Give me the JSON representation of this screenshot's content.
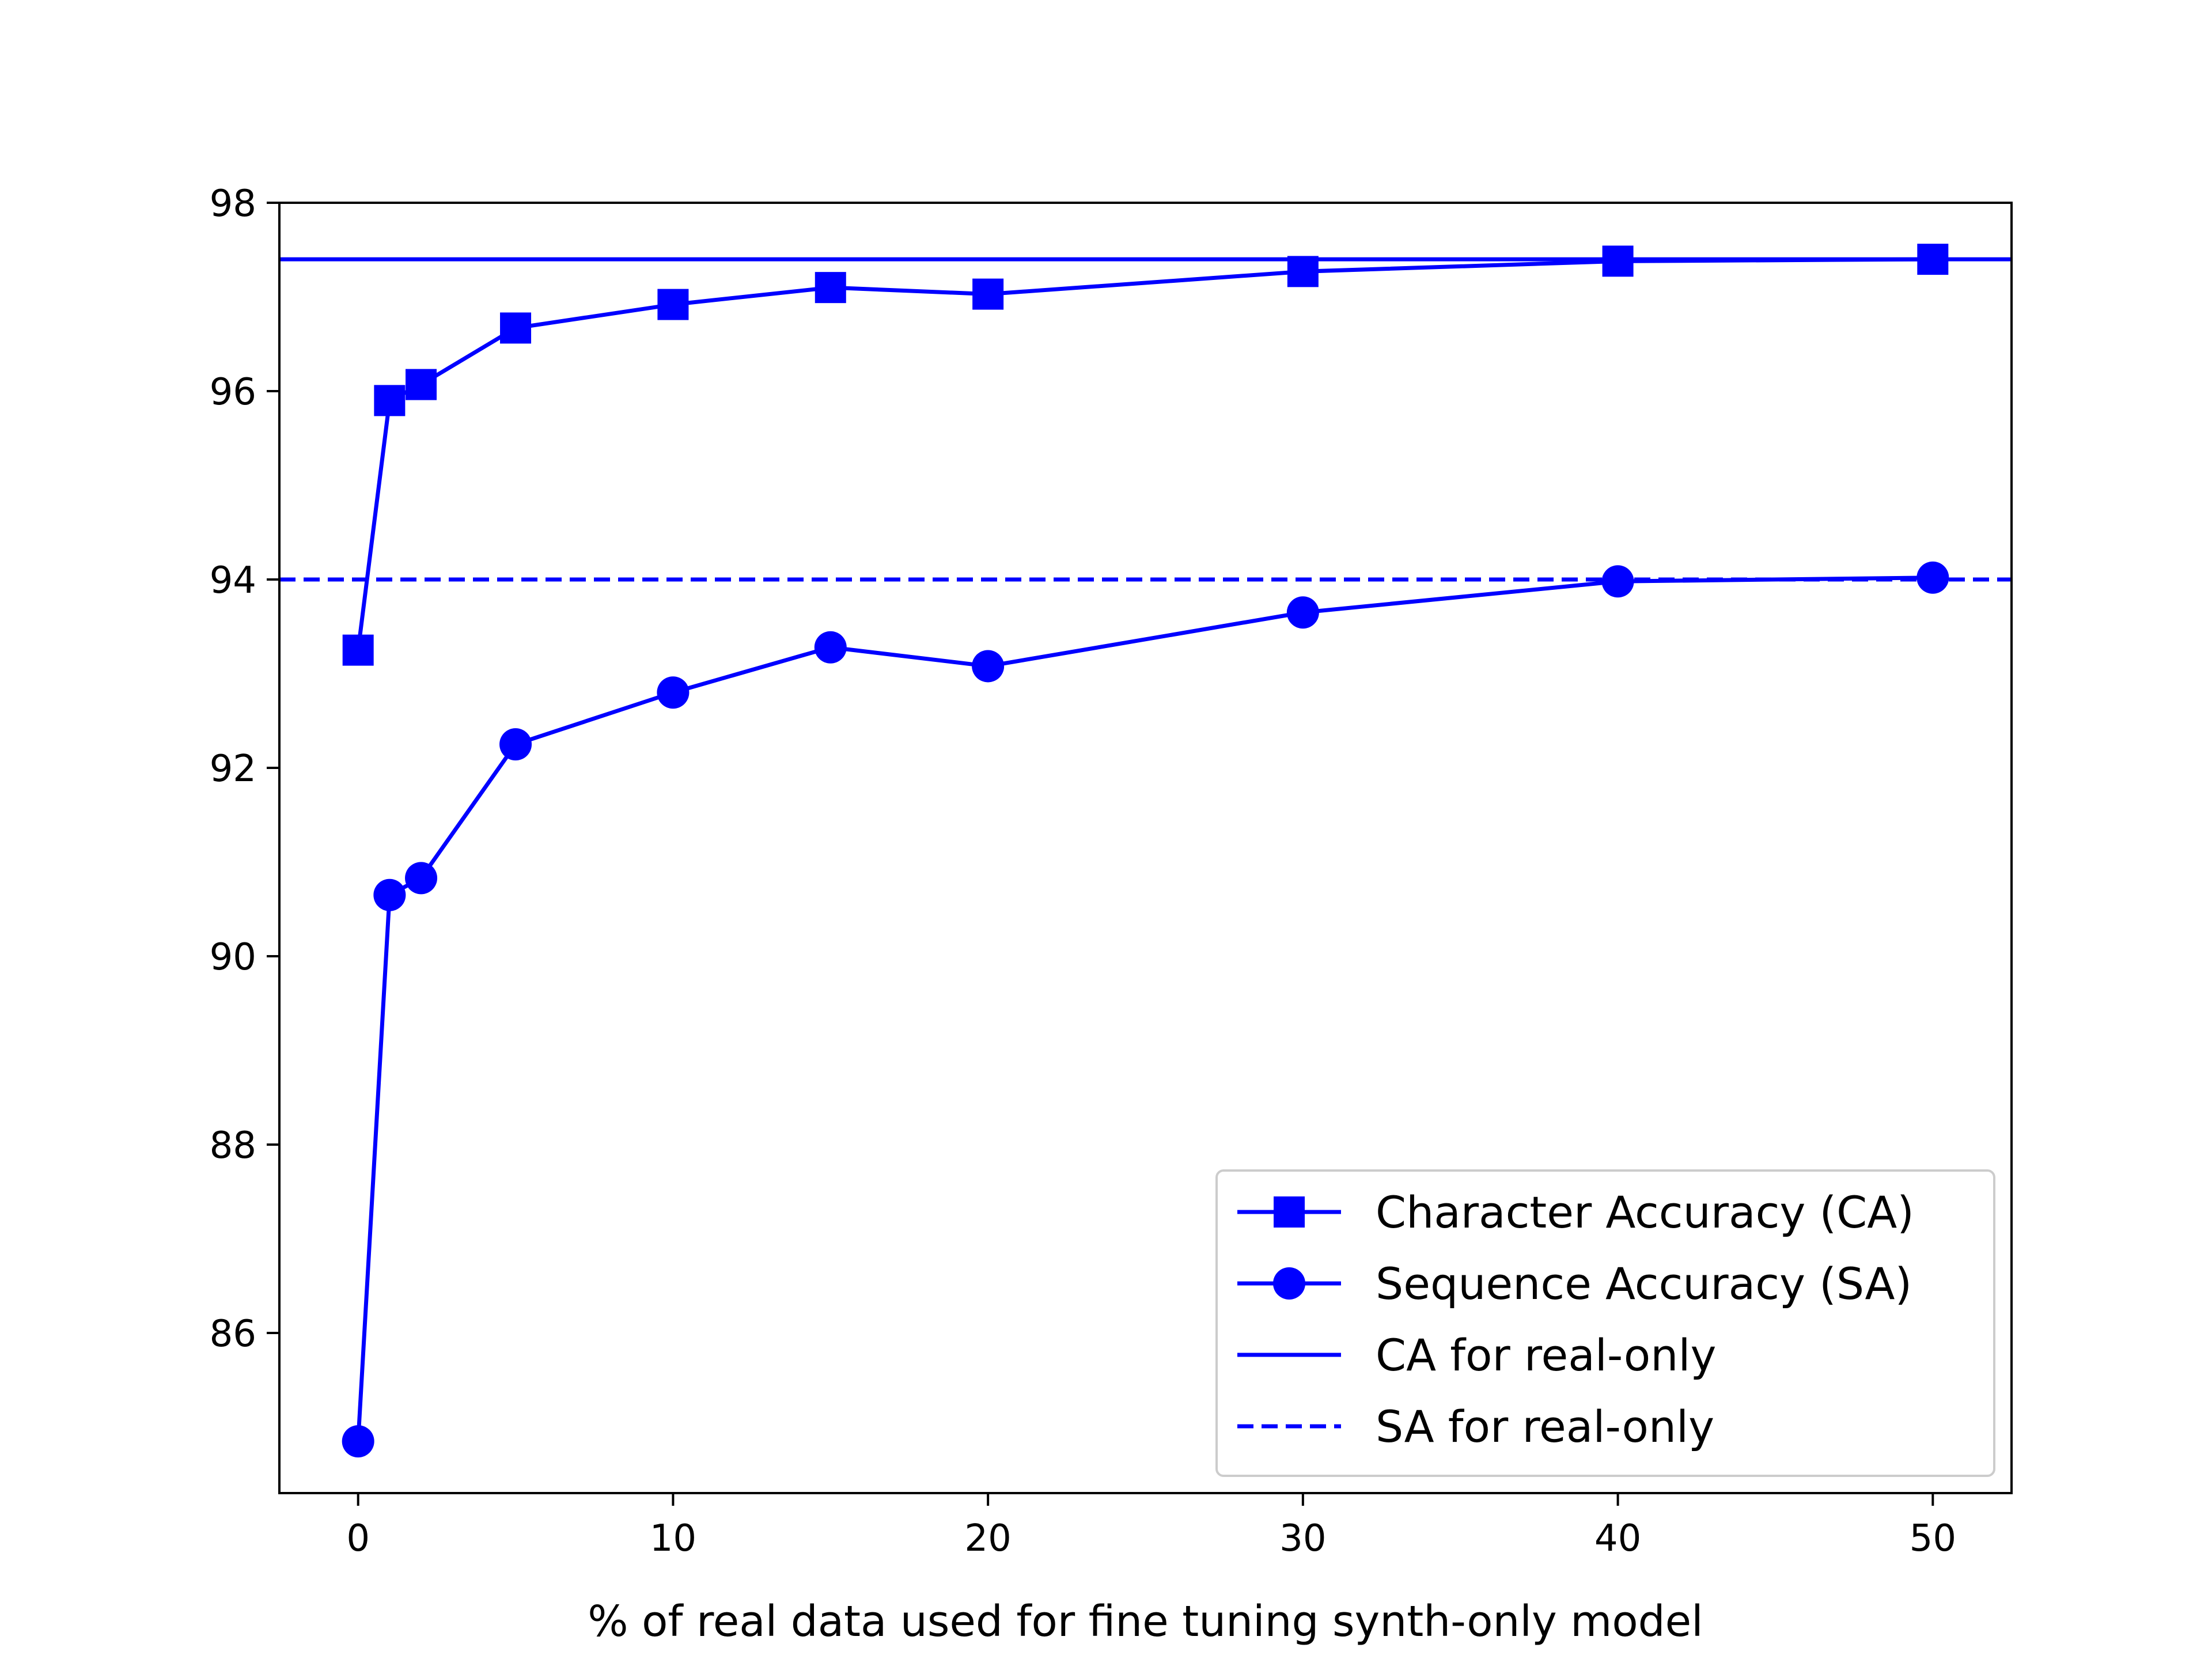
{
  "chart_data": {
    "type": "line",
    "xlabel": "% of real data used for fine tuning synth-only model",
    "ylabel": "",
    "title": "",
    "xlim": [
      -2.5,
      52.5
    ],
    "ylim": [
      84.3,
      98.0
    ],
    "xticks": [
      0,
      10,
      20,
      30,
      40,
      50
    ],
    "yticks": [
      86,
      88,
      90,
      92,
      94,
      96,
      98
    ],
    "grid": false,
    "legend_position": "lower-right",
    "color": "#0000ff",
    "series": [
      {
        "name": "Character Accuracy (CA)",
        "marker": "square",
        "linestyle": "solid",
        "x": [
          0,
          1,
          2,
          5,
          10,
          15,
          20,
          30,
          40,
          50
        ],
        "values": [
          93.25,
          95.9,
          96.07,
          96.67,
          96.92,
          97.1,
          97.03,
          97.27,
          97.38,
          97.4
        ]
      },
      {
        "name": "Sequence Accuracy (SA)",
        "marker": "circle",
        "linestyle": "solid",
        "x": [
          0,
          1,
          2,
          5,
          10,
          15,
          20,
          30,
          40,
          50
        ],
        "values": [
          84.85,
          90.65,
          90.83,
          92.25,
          92.8,
          93.28,
          93.08,
          93.65,
          93.98,
          94.02
        ]
      }
    ],
    "reference_lines": [
      {
        "name": "CA for real-only",
        "y": 97.4,
        "linestyle": "solid"
      },
      {
        "name": "SA for real-only",
        "y": 94.0,
        "linestyle": "dashed"
      }
    ]
  }
}
